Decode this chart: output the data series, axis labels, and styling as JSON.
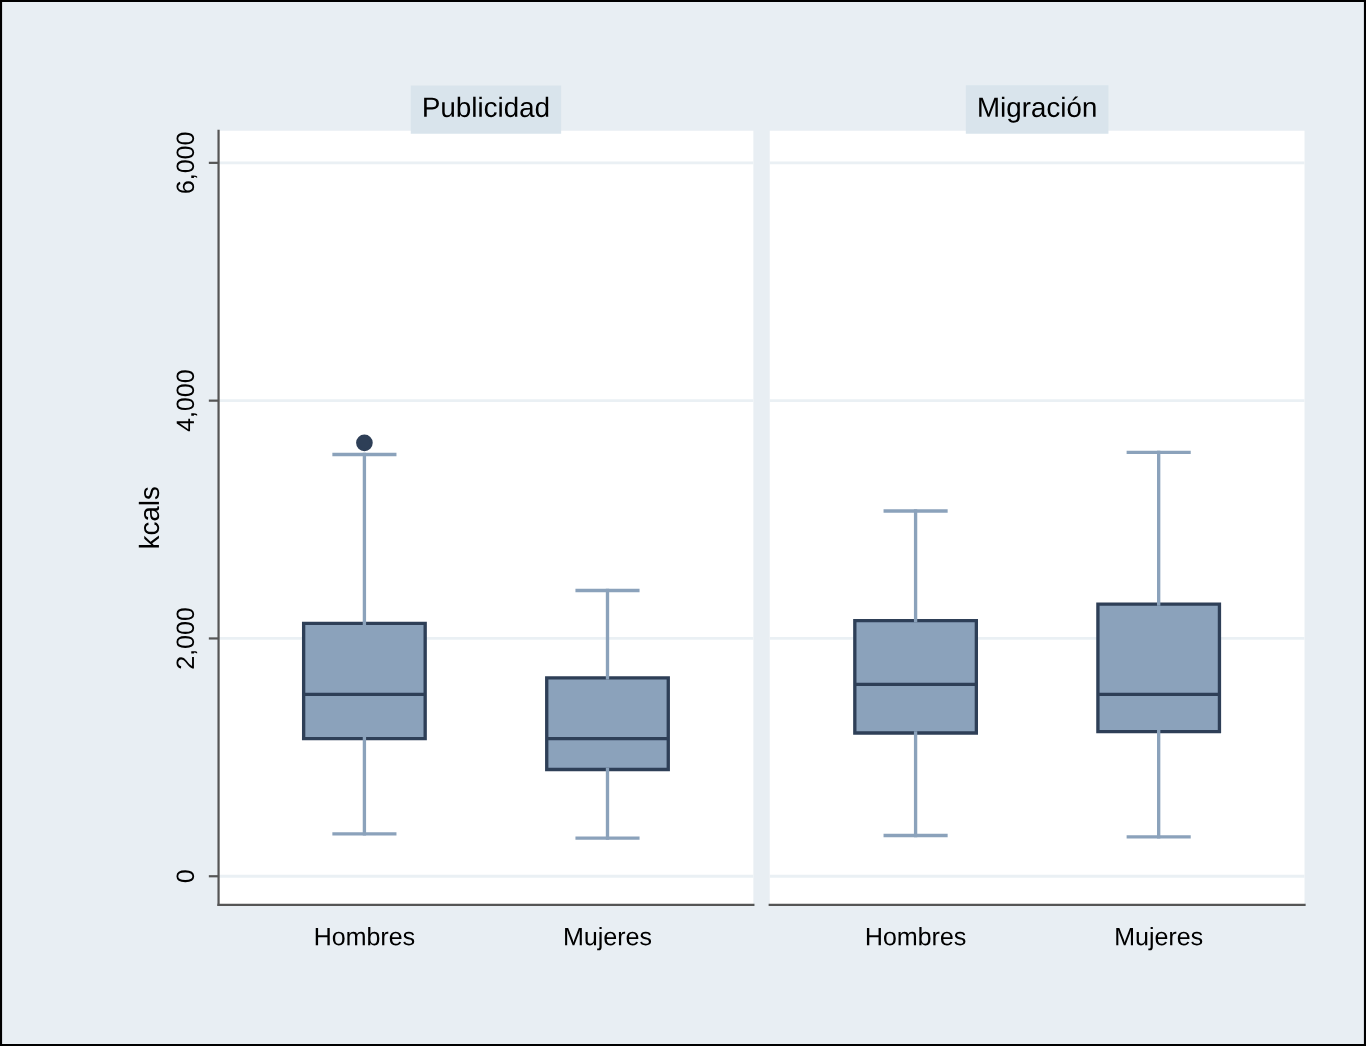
{
  "chart_data": [
    {
      "type": "box",
      "title": "Publicidad",
      "ylabel": "kcals",
      "categories": [
        "Hombres",
        "Mujeres"
      ],
      "color": "#8ba2bb",
      "grid": "y",
      "ylim": [
        -240,
        6270
      ],
      "yticks": [
        0,
        {
          "value": 2000,
          "label": "2,000"
        },
        {
          "value": 4000,
          "label": "4,000"
        },
        {
          "value": 6000,
          "label": "6,000"
        }
      ],
      "boxes": [
        {
          "low": 356,
          "q1": 1157,
          "median": 1530,
          "q3": 2127,
          "high": 3547,
          "outliers": [
            3645
          ]
        },
        {
          "low": 320,
          "q1": 898,
          "median": 1157,
          "q3": 1668,
          "high": 2403
        }
      ]
    },
    {
      "type": "box",
      "title": "Migración",
      "categories": [
        "Hombres",
        "Mujeres"
      ],
      "color": "#8ba2bb",
      "grid": "y",
      "ylim": [
        -240,
        6270
      ],
      "tick_labels": "x",
      "yticks": [
        0,
        2000,
        4000,
        6000
      ],
      "boxes": [
        {
          "low": 343,
          "q1": 1205,
          "median": 1614,
          "q3": 2150,
          "high": 3072
        },
        {
          "low": 331,
          "q1": 1216,
          "median": 1530,
          "q3": 2289,
          "high": 3565
        }
      ]
    }
  ]
}
